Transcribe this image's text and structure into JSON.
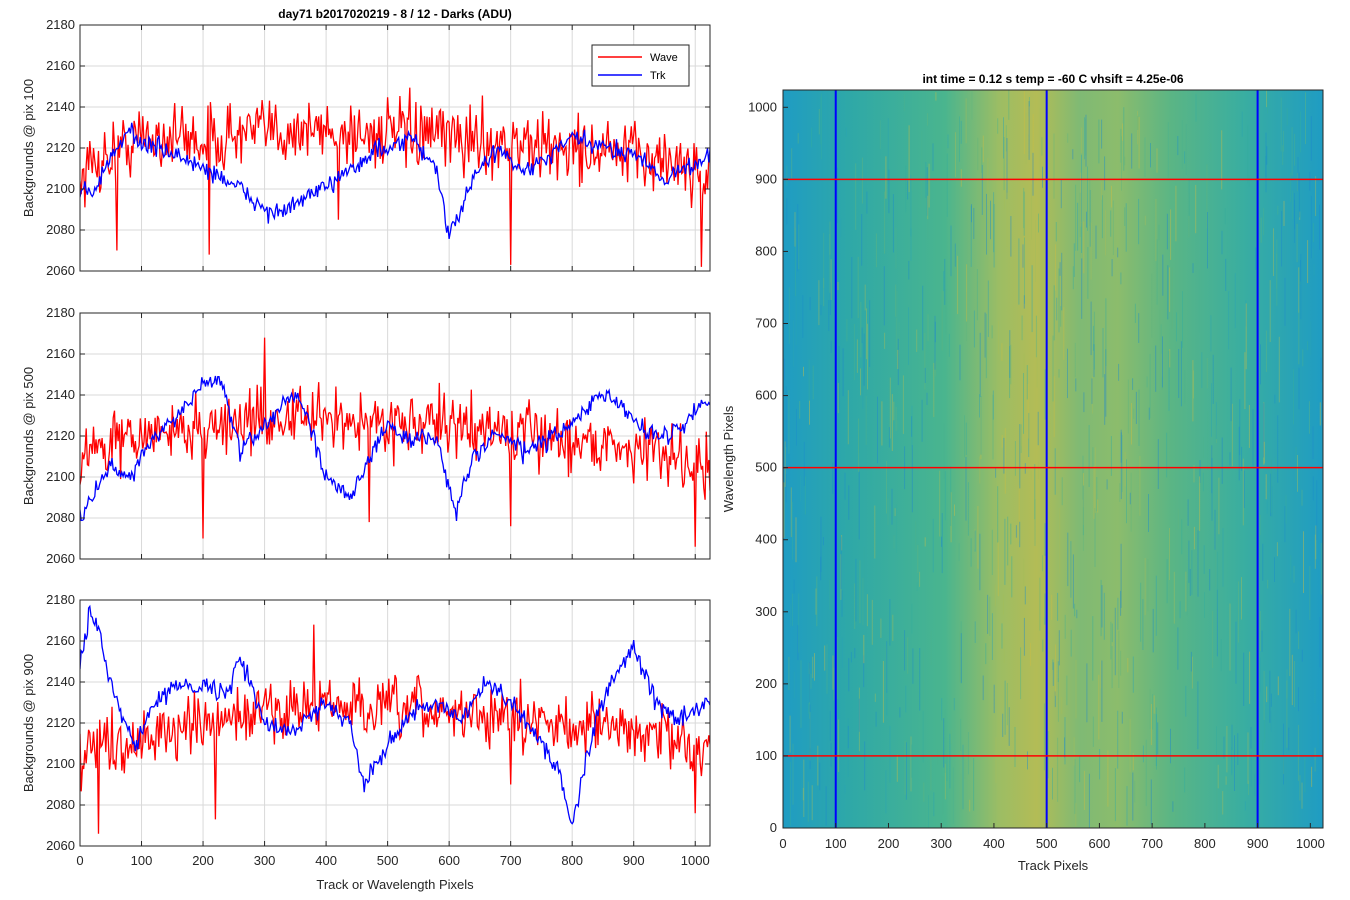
{
  "figure": {
    "title": "day71  b2017020219 - 8 / 12 - Darks (ADU)",
    "colors": {
      "wave": "#ff0000",
      "trk": "#0000ff",
      "grid": "#d9d9d9",
      "axis": "#262626"
    }
  },
  "chart_data": [
    {
      "type": "line",
      "ylabel": "Backgrounds @ pix 100",
      "xlim": [
        0,
        1024
      ],
      "ylim": [
        2060,
        2180
      ],
      "xticks": [
        0,
        100,
        200,
        300,
        400,
        500,
        600,
        700,
        800,
        900,
        1000
      ],
      "yticks": [
        2060,
        2080,
        2100,
        2120,
        2140,
        2160,
        2180
      ],
      "show_xticklabels": false,
      "grid": true,
      "legend": "top-right",
      "series": [
        {
          "name": "Wave",
          "color": "#ff0000",
          "x": [
            0,
            20,
            40,
            60,
            80,
            100,
            150,
            200,
            250,
            300,
            350,
            400,
            450,
            500,
            550,
            600,
            650,
            700,
            750,
            800,
            850,
            900,
            950,
            1000,
            1024
          ],
          "y": [
            2105,
            2112,
            2115,
            2118,
            2122,
            2125,
            2126,
            2124,
            2126,
            2128,
            2129,
            2128,
            2127,
            2127,
            2126,
            2125,
            2124,
            2122,
            2120,
            2120,
            2118,
            2116,
            2114,
            2110,
            2108
          ],
          "noise": 18,
          "spikes": [
            [
              420,
              2085
            ],
            [
              700,
              2063
            ],
            [
              1010,
              2062
            ],
            [
              210,
              2068
            ],
            [
              60,
              2070
            ]
          ]
        },
        {
          "name": "Trk",
          "color": "#0000ff",
          "x": [
            0,
            20,
            40,
            60,
            80,
            100,
            130,
            160,
            200,
            230,
            260,
            300,
            330,
            360,
            400,
            430,
            460,
            480,
            500,
            540,
            580,
            600,
            620,
            650,
            680,
            720,
            760,
            800,
            850,
            900,
            950,
            1000,
            1024
          ],
          "y": [
            2100,
            2098,
            2110,
            2118,
            2130,
            2122,
            2120,
            2116,
            2110,
            2106,
            2100,
            2090,
            2088,
            2095,
            2100,
            2110,
            2112,
            2120,
            2118,
            2125,
            2110,
            2075,
            2092,
            2110,
            2120,
            2108,
            2115,
            2125,
            2120,
            2118,
            2105,
            2112,
            2118
          ],
          "noise": 5,
          "spikes": []
        }
      ]
    },
    {
      "type": "line",
      "ylabel": "Backgrounds @ pix 500",
      "xlim": [
        0,
        1024
      ],
      "ylim": [
        2060,
        2180
      ],
      "xticks": [
        0,
        100,
        200,
        300,
        400,
        500,
        600,
        700,
        800,
        900,
        1000
      ],
      "yticks": [
        2060,
        2080,
        2100,
        2120,
        2140,
        2160,
        2180
      ],
      "show_xticklabels": false,
      "grid": true,
      "series": [
        {
          "name": "Wave",
          "color": "#ff0000",
          "x": [
            0,
            50,
            100,
            150,
            200,
            250,
            300,
            350,
            400,
            450,
            500,
            550,
            600,
            650,
            700,
            750,
            800,
            850,
            900,
            950,
            1000,
            1024
          ],
          "y": [
            2110,
            2116,
            2120,
            2122,
            2124,
            2126,
            2128,
            2129,
            2128,
            2127,
            2127,
            2126,
            2125,
            2124,
            2122,
            2120,
            2118,
            2116,
            2114,
            2112,
            2108,
            2104
          ],
          "noise": 16,
          "spikes": [
            [
              300,
              2168
            ],
            [
              200,
              2070
            ],
            [
              470,
              2078
            ],
            [
              1000,
              2066
            ],
            [
              700,
              2076
            ]
          ]
        },
        {
          "name": "Trk",
          "color": "#0000ff",
          "x": [
            0,
            20,
            50,
            80,
            120,
            160,
            200,
            230,
            260,
            300,
            340,
            360,
            380,
            400,
            440,
            470,
            500,
            540,
            580,
            610,
            640,
            680,
            720,
            760,
            800,
            840,
            880,
            920,
            960,
            1000,
            1024
          ],
          "y": [
            2080,
            2090,
            2105,
            2100,
            2120,
            2130,
            2145,
            2148,
            2112,
            2125,
            2140,
            2135,
            2120,
            2100,
            2092,
            2108,
            2125,
            2118,
            2120,
            2082,
            2110,
            2122,
            2112,
            2118,
            2125,
            2140,
            2135,
            2122,
            2120,
            2132,
            2138
          ],
          "noise": 5,
          "spikes": []
        }
      ]
    },
    {
      "type": "line",
      "ylabel": "Backgrounds @ pix 900",
      "xlabel": "Track or Wavelength Pixels",
      "xlim": [
        0,
        1024
      ],
      "ylim": [
        2060,
        2180
      ],
      "xticks": [
        0,
        100,
        200,
        300,
        400,
        500,
        600,
        700,
        800,
        900,
        1000
      ],
      "yticks": [
        2060,
        2080,
        2100,
        2120,
        2140,
        2160,
        2180
      ],
      "show_xticklabels": true,
      "grid": true,
      "series": [
        {
          "name": "Wave",
          "color": "#ff0000",
          "x": [
            0,
            50,
            100,
            150,
            200,
            250,
            300,
            350,
            400,
            450,
            500,
            550,
            600,
            650,
            700,
            750,
            800,
            850,
            900,
            950,
            1000,
            1024
          ],
          "y": [
            2108,
            2110,
            2113,
            2116,
            2118,
            2122,
            2126,
            2128,
            2128,
            2127,
            2126,
            2126,
            2125,
            2124,
            2122,
            2120,
            2120,
            2118,
            2116,
            2114,
            2110,
            2106
          ],
          "noise": 16,
          "spikes": [
            [
              30,
              2066
            ],
            [
              220,
              2073
            ],
            [
              380,
              2168
            ],
            [
              1000,
              2076
            ],
            [
              700,
              2090
            ]
          ]
        },
        {
          "name": "Trk",
          "color": "#0000ff",
          "x": [
            0,
            15,
            30,
            60,
            90,
            120,
            160,
            200,
            240,
            260,
            300,
            340,
            360,
            400,
            440,
            460,
            500,
            540,
            580,
            620,
            660,
            700,
            740,
            780,
            800,
            840,
            880,
            900,
            940,
            980,
            1024
          ],
          "y": [
            2150,
            2172,
            2165,
            2130,
            2110,
            2128,
            2140,
            2138,
            2135,
            2152,
            2120,
            2115,
            2120,
            2130,
            2120,
            2090,
            2110,
            2125,
            2130,
            2120,
            2140,
            2130,
            2115,
            2095,
            2070,
            2125,
            2150,
            2155,
            2128,
            2122,
            2130
          ],
          "noise": 5,
          "spikes": []
        }
      ]
    },
    {
      "type": "heatmap",
      "title": "int time = 0.12 s    temp = -60 C    vhsift = 4.25e-06",
      "xlabel": "Track Pixels",
      "ylabel": "Wavelength Pixels",
      "xlim": [
        0,
        1024
      ],
      "ylim": [
        0,
        1024
      ],
      "xticks": [
        0,
        100,
        200,
        300,
        400,
        500,
        600,
        700,
        800,
        900,
        1000
      ],
      "yticks": [
        0,
        100,
        200,
        300,
        400,
        500,
        600,
        700,
        800,
        900,
        1000
      ],
      "colormap": "parula",
      "vertical_lines": {
        "color": "#0000ff",
        "x": [
          100,
          500,
          900
        ]
      },
      "horizontal_lines": {
        "color": "#ff0000",
        "y": [
          100,
          500,
          900
        ]
      }
    }
  ]
}
